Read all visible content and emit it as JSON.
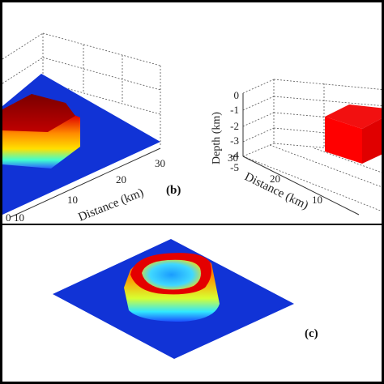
{
  "panels": [
    {
      "id": "a",
      "description_visible": false,
      "x_axis": {
        "label": "Distance (km)",
        "ticks": [
          "0",
          "10",
          "20",
          "30"
        ]
      }
    },
    {
      "id": "b",
      "label": "(b)",
      "y_axis": {
        "label": "Depth (km)",
        "ticks": [
          "0",
          "-1",
          "-2",
          "-3",
          "-4",
          "-5"
        ]
      },
      "x_axis": {
        "label": "Distance (km)",
        "ticks": [
          "30",
          "20",
          "10"
        ]
      },
      "block_color": "#ff0000"
    },
    {
      "id": "c",
      "label": "(c)"
    }
  ],
  "colors": {
    "surface_blue": "#1133d6",
    "anomaly_red": "#d80000",
    "anomaly_yellow": "#ffd200",
    "anomaly_cyan": "#28e0ff"
  }
}
